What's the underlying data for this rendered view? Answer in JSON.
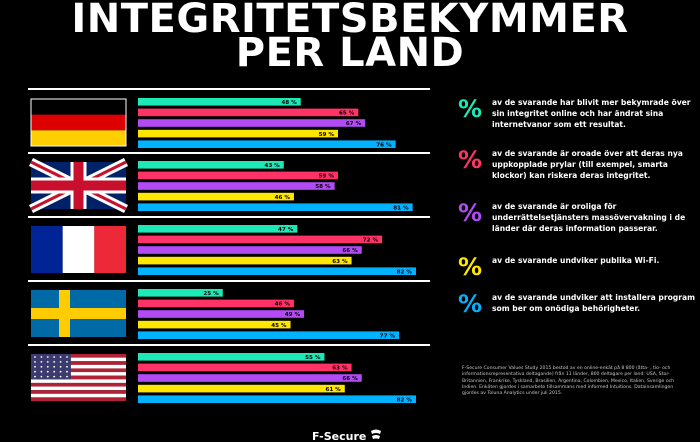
{
  "title": {
    "line1": "INTEGRITETSBEKYMMER",
    "line2": "PER LAND"
  },
  "colors": {
    "background": "#000000",
    "series": [
      "#1de9b6",
      "#ff3366",
      "#b24bf3",
      "#ffe600",
      "#00b2ff"
    ]
  },
  "legend": [
    {
      "symbol": "%",
      "text": "av de svarande har blivit mer bekymrade över sin integritet online och har ändrat sina internetvanor som ett resultat."
    },
    {
      "symbol": "%",
      "text": "av de svarande är oroade över att deras nya uppkopplade prylar (till exempel, smarta klockor) kan riskera deras integritet."
    },
    {
      "symbol": "%",
      "text": "av de svarande är oroliga för underrättelsetjänsters massövervakning i de länder där deras information passerar."
    },
    {
      "symbol": "%",
      "text": "av de svarande undviker publika Wi-Fi."
    },
    {
      "symbol": "%",
      "text": "av de svarande undviker att installera program som ber om onödiga behörigheter."
    }
  ],
  "source_note": "F-Secure Consumer Values Study 2015 bestod av en online-enkät på 8 800 (åtta- , tio- och informationsrepresentativa deltagande) från 11 länder, 800 deltagare per land: USA, Stor-Britannien, Frankrike, Tyskland, Brasilien, Argentina, Colombien, Mexico, Italien, Sverige och Indien. Enkäten gjordes i samarbete tillsammans med informed Intuitions. Datainsamlingen gjordes av Toluna Analytics under juli 2015.",
  "logo": {
    "text": "F-Secure",
    "icon": "f-secure-logo-icon"
  },
  "chart_data": {
    "type": "bar",
    "orientation": "horizontal",
    "unit": "%",
    "xlim": [
      0,
      100
    ],
    "categories": [
      "Germany",
      "United Kingdom",
      "France",
      "Sweden",
      "United States"
    ],
    "flag_icons": [
      "flag-germany-icon",
      "flag-uk-icon",
      "flag-france-icon",
      "flag-sweden-icon",
      "flag-usa-icon"
    ],
    "series": [
      {
        "values": [
          48,
          43,
          47,
          25,
          55
        ]
      },
      {
        "values": [
          65,
          59,
          72,
          46,
          63
        ]
      },
      {
        "values": [
          67,
          58,
          66,
          49,
          66
        ]
      },
      {
        "values": [
          59,
          46,
          63,
          45,
          61
        ]
      },
      {
        "values": [
          76,
          81,
          82,
          77,
          82
        ]
      }
    ],
    "value_labels": [
      [
        "48 %",
        "65 %",
        "67 %",
        "59 %",
        "76 %"
      ],
      [
        "43 %",
        "59 %",
        "58 %",
        "46 %",
        "81 %"
      ],
      [
        "47 %",
        "72 %",
        "66 %",
        "63 %",
        "82 %"
      ],
      [
        "25 %",
        "46 %",
        "49 %",
        "45 %",
        "77 %"
      ],
      [
        "55 %",
        "63 %",
        "66 %",
        "61 %",
        "82 %"
      ]
    ]
  }
}
